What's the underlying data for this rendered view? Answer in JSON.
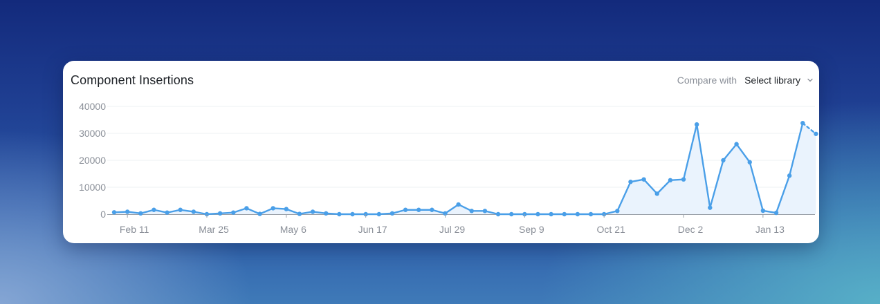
{
  "card": {
    "title": "Component Insertions",
    "compare_label": "Compare with",
    "select_value": "Select library",
    "chevron_icon": "chevron-down-icon"
  },
  "colors": {
    "line": "#4a9fe8",
    "area": "#eaf3fd",
    "grid": "#eef0f3",
    "axis": "#9aa0a8"
  },
  "chart_data": {
    "type": "area",
    "title": "Component Insertions",
    "xlabel": "",
    "ylabel": "",
    "ylim": [
      0,
      40000
    ],
    "yticks": [
      0,
      10000,
      20000,
      30000,
      40000
    ],
    "ytick_labels": [
      "0",
      "10000",
      "20000",
      "30000",
      "40000"
    ],
    "xtick_labels": [
      "Feb 11",
      "Mar 25",
      "May 6",
      "Jun 17",
      "Jul 29",
      "Sep 9",
      "Oct 21",
      "Dec 2",
      "Jan 13"
    ],
    "xtick_indices": [
      1,
      7,
      13,
      19,
      25,
      31,
      37,
      43,
      49
    ],
    "grid": true,
    "legend": "none",
    "last_segment_dashed": true,
    "series": [
      {
        "values": [
          700,
          900,
          300,
          1600,
          600,
          1600,
          900,
          0,
          300,
          600,
          2200,
          100,
          2200,
          1900,
          100,
          900,
          300,
          0,
          0,
          0,
          0,
          300,
          1600,
          1600,
          1600,
          300,
          3600,
          1200,
          1200,
          0,
          0,
          0,
          0,
          0,
          0,
          0,
          0,
          0,
          1200,
          12000,
          12900,
          7600,
          12600,
          12900,
          33300,
          2400,
          20000,
          26000,
          19300,
          1300,
          500,
          14300,
          33800,
          29800
        ]
      }
    ]
  }
}
